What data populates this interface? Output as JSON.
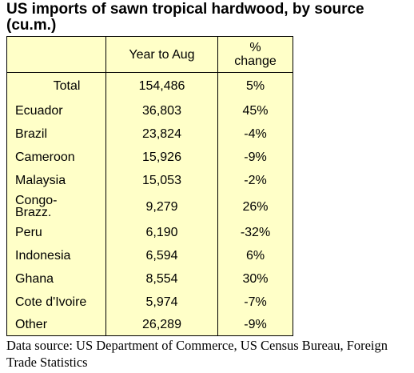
{
  "title": "US imports of sawn tropical hardwood, by source (cu.m.)",
  "table": {
    "headers": [
      "",
      "Year to Aug",
      "% change"
    ],
    "rows": [
      {
        "source": "Total",
        "volume": "154,486",
        "change": "5%"
      },
      {
        "source": "Ecuador",
        "volume": "36,803",
        "change": "45%"
      },
      {
        "source": "Brazil",
        "volume": "23,824",
        "change": "-4%"
      },
      {
        "source": "Cameroon",
        "volume": "15,926",
        "change": "-9%"
      },
      {
        "source": "Malaysia",
        "volume": "15,053",
        "change": "-2%"
      },
      {
        "source": "Congo-Brazz.",
        "volume": "9,279",
        "change": "26%"
      },
      {
        "source": "Peru",
        "volume": "6,190",
        "change": "-32%"
      },
      {
        "source": "Indonesia",
        "volume": "6,594",
        "change": "6%"
      },
      {
        "source": "Ghana",
        "volume": "8,554",
        "change": "30%"
      },
      {
        "source": "Cote d'Ivoire",
        "volume": "5,974",
        "change": "-7%"
      },
      {
        "source": "Other",
        "volume": "26,289",
        "change": "-9%"
      }
    ]
  },
  "source_note": "Data source: US Department of Commerce, US Census Bureau, Foreign Trade Statistics",
  "colors": {
    "table_fill": "#ffffc8",
    "border": "#000000"
  }
}
